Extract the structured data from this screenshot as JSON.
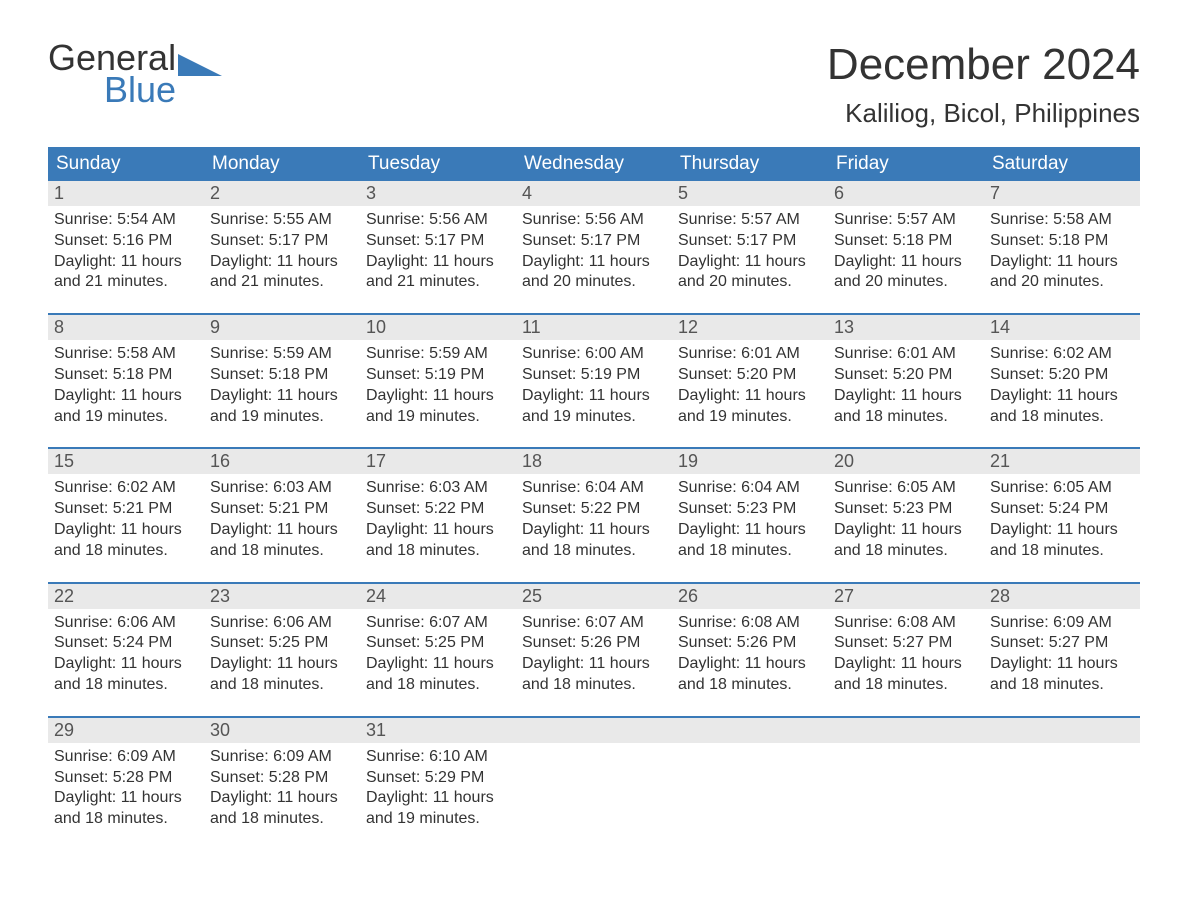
{
  "logo": {
    "line1": "General",
    "line2": "Blue"
  },
  "title": "December 2024",
  "subtitle": "Kaliliog, Bicol, Philippines",
  "colors": {
    "header_bg": "#3a7ab8",
    "header_text": "#ffffff",
    "daynum_bg": "#e9e9e9",
    "divider": "#3a7ab8",
    "body_text": "#333333",
    "logo_blue": "#3a7ab8"
  },
  "fontsize": {
    "title": 44,
    "subtitle": 26,
    "weekday": 19,
    "daynum": 18,
    "body": 16
  },
  "weekdays": [
    "Sunday",
    "Monday",
    "Tuesday",
    "Wednesday",
    "Thursday",
    "Friday",
    "Saturday"
  ],
  "label": {
    "sunrise": "Sunrise:",
    "sunset": "Sunset:",
    "daylight": "Daylight:"
  },
  "weeks": [
    [
      {
        "n": "1",
        "sunrise": "5:54 AM",
        "sunset": "5:16 PM",
        "daylight": "11 hours and 21 minutes."
      },
      {
        "n": "2",
        "sunrise": "5:55 AM",
        "sunset": "5:17 PM",
        "daylight": "11 hours and 21 minutes."
      },
      {
        "n": "3",
        "sunrise": "5:56 AM",
        "sunset": "5:17 PM",
        "daylight": "11 hours and 21 minutes."
      },
      {
        "n": "4",
        "sunrise": "5:56 AM",
        "sunset": "5:17 PM",
        "daylight": "11 hours and 20 minutes."
      },
      {
        "n": "5",
        "sunrise": "5:57 AM",
        "sunset": "5:17 PM",
        "daylight": "11 hours and 20 minutes."
      },
      {
        "n": "6",
        "sunrise": "5:57 AM",
        "sunset": "5:18 PM",
        "daylight": "11 hours and 20 minutes."
      },
      {
        "n": "7",
        "sunrise": "5:58 AM",
        "sunset": "5:18 PM",
        "daylight": "11 hours and 20 minutes."
      }
    ],
    [
      {
        "n": "8",
        "sunrise": "5:58 AM",
        "sunset": "5:18 PM",
        "daylight": "11 hours and 19 minutes."
      },
      {
        "n": "9",
        "sunrise": "5:59 AM",
        "sunset": "5:18 PM",
        "daylight": "11 hours and 19 minutes."
      },
      {
        "n": "10",
        "sunrise": "5:59 AM",
        "sunset": "5:19 PM",
        "daylight": "11 hours and 19 minutes."
      },
      {
        "n": "11",
        "sunrise": "6:00 AM",
        "sunset": "5:19 PM",
        "daylight": "11 hours and 19 minutes."
      },
      {
        "n": "12",
        "sunrise": "6:01 AM",
        "sunset": "5:20 PM",
        "daylight": "11 hours and 19 minutes."
      },
      {
        "n": "13",
        "sunrise": "6:01 AM",
        "sunset": "5:20 PM",
        "daylight": "11 hours and 18 minutes."
      },
      {
        "n": "14",
        "sunrise": "6:02 AM",
        "sunset": "5:20 PM",
        "daylight": "11 hours and 18 minutes."
      }
    ],
    [
      {
        "n": "15",
        "sunrise": "6:02 AM",
        "sunset": "5:21 PM",
        "daylight": "11 hours and 18 minutes."
      },
      {
        "n": "16",
        "sunrise": "6:03 AM",
        "sunset": "5:21 PM",
        "daylight": "11 hours and 18 minutes."
      },
      {
        "n": "17",
        "sunrise": "6:03 AM",
        "sunset": "5:22 PM",
        "daylight": "11 hours and 18 minutes."
      },
      {
        "n": "18",
        "sunrise": "6:04 AM",
        "sunset": "5:22 PM",
        "daylight": "11 hours and 18 minutes."
      },
      {
        "n": "19",
        "sunrise": "6:04 AM",
        "sunset": "5:23 PM",
        "daylight": "11 hours and 18 minutes."
      },
      {
        "n": "20",
        "sunrise": "6:05 AM",
        "sunset": "5:23 PM",
        "daylight": "11 hours and 18 minutes."
      },
      {
        "n": "21",
        "sunrise": "6:05 AM",
        "sunset": "5:24 PM",
        "daylight": "11 hours and 18 minutes."
      }
    ],
    [
      {
        "n": "22",
        "sunrise": "6:06 AM",
        "sunset": "5:24 PM",
        "daylight": "11 hours and 18 minutes."
      },
      {
        "n": "23",
        "sunrise": "6:06 AM",
        "sunset": "5:25 PM",
        "daylight": "11 hours and 18 minutes."
      },
      {
        "n": "24",
        "sunrise": "6:07 AM",
        "sunset": "5:25 PM",
        "daylight": "11 hours and 18 minutes."
      },
      {
        "n": "25",
        "sunrise": "6:07 AM",
        "sunset": "5:26 PM",
        "daylight": "11 hours and 18 minutes."
      },
      {
        "n": "26",
        "sunrise": "6:08 AM",
        "sunset": "5:26 PM",
        "daylight": "11 hours and 18 minutes."
      },
      {
        "n": "27",
        "sunrise": "6:08 AM",
        "sunset": "5:27 PM",
        "daylight": "11 hours and 18 minutes."
      },
      {
        "n": "28",
        "sunrise": "6:09 AM",
        "sunset": "5:27 PM",
        "daylight": "11 hours and 18 minutes."
      }
    ],
    [
      {
        "n": "29",
        "sunrise": "6:09 AM",
        "sunset": "5:28 PM",
        "daylight": "11 hours and 18 minutes."
      },
      {
        "n": "30",
        "sunrise": "6:09 AM",
        "sunset": "5:28 PM",
        "daylight": "11 hours and 18 minutes."
      },
      {
        "n": "31",
        "sunrise": "6:10 AM",
        "sunset": "5:29 PM",
        "daylight": "11 hours and 19 minutes."
      },
      null,
      null,
      null,
      null
    ]
  ]
}
